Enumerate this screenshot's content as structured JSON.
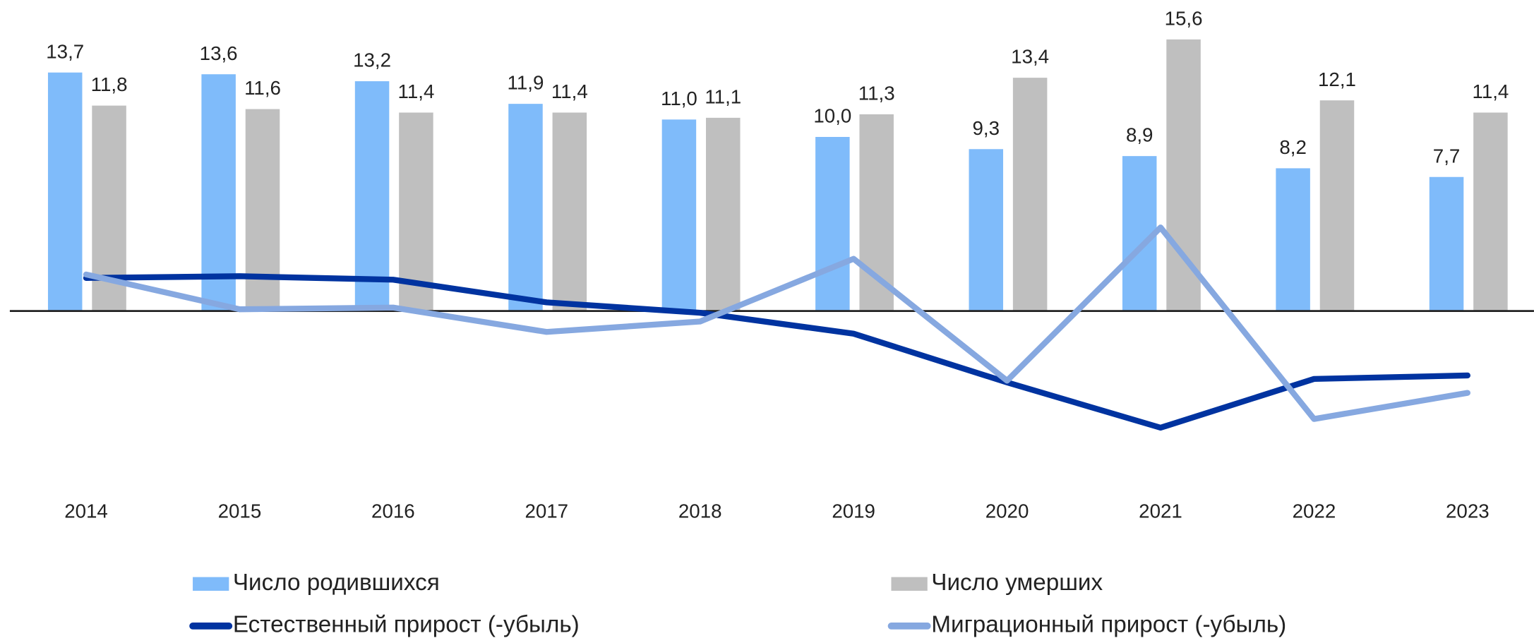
{
  "chart_data": {
    "type": "bar_line",
    "categories": [
      "2014",
      "2015",
      "2016",
      "2017",
      "2018",
      "2019",
      "2020",
      "2021",
      "2022",
      "2023"
    ],
    "series": [
      {
        "name": "Число родившихся",
        "type": "bar",
        "color": "#7fbbfa",
        "values": [
          13.7,
          13.6,
          13.2,
          11.9,
          11.0,
          10.0,
          9.3,
          8.9,
          8.2,
          7.7
        ],
        "value_labels": [
          "13,7",
          "13,6",
          "13,2",
          "11,9",
          "11,0",
          "10,0",
          "9,3",
          "8,9",
          "8,2",
          "7,7"
        ]
      },
      {
        "name": "Число умерших",
        "type": "bar",
        "color": "#bfbfbf",
        "values": [
          11.8,
          11.6,
          11.4,
          11.4,
          11.1,
          11.3,
          13.4,
          15.6,
          12.1,
          11.4
        ],
        "value_labels": [
          "11,8",
          "11,6",
          "11,4",
          "11,4",
          "11,1",
          "11,3",
          "13,4",
          "15,6",
          "12,1",
          "11,4"
        ]
      },
      {
        "name": "Естественный прирост (-убыль)",
        "type": "line",
        "color": "#0033a0",
        "values": [
          1.9,
          2.0,
          1.8,
          0.5,
          -0.1,
          -1.3,
          -4.1,
          -6.7,
          -3.9,
          -3.7
        ]
      },
      {
        "name": "Миграционный прирост (-убыль)",
        "type": "line",
        "color": "#86a8e0",
        "values": [
          2.1,
          0.1,
          0.2,
          -1.2,
          -0.6,
          3.0,
          -4.0,
          4.8,
          -6.2,
          -4.7
        ]
      }
    ],
    "ylim": [
      -10,
      16
    ]
  }
}
